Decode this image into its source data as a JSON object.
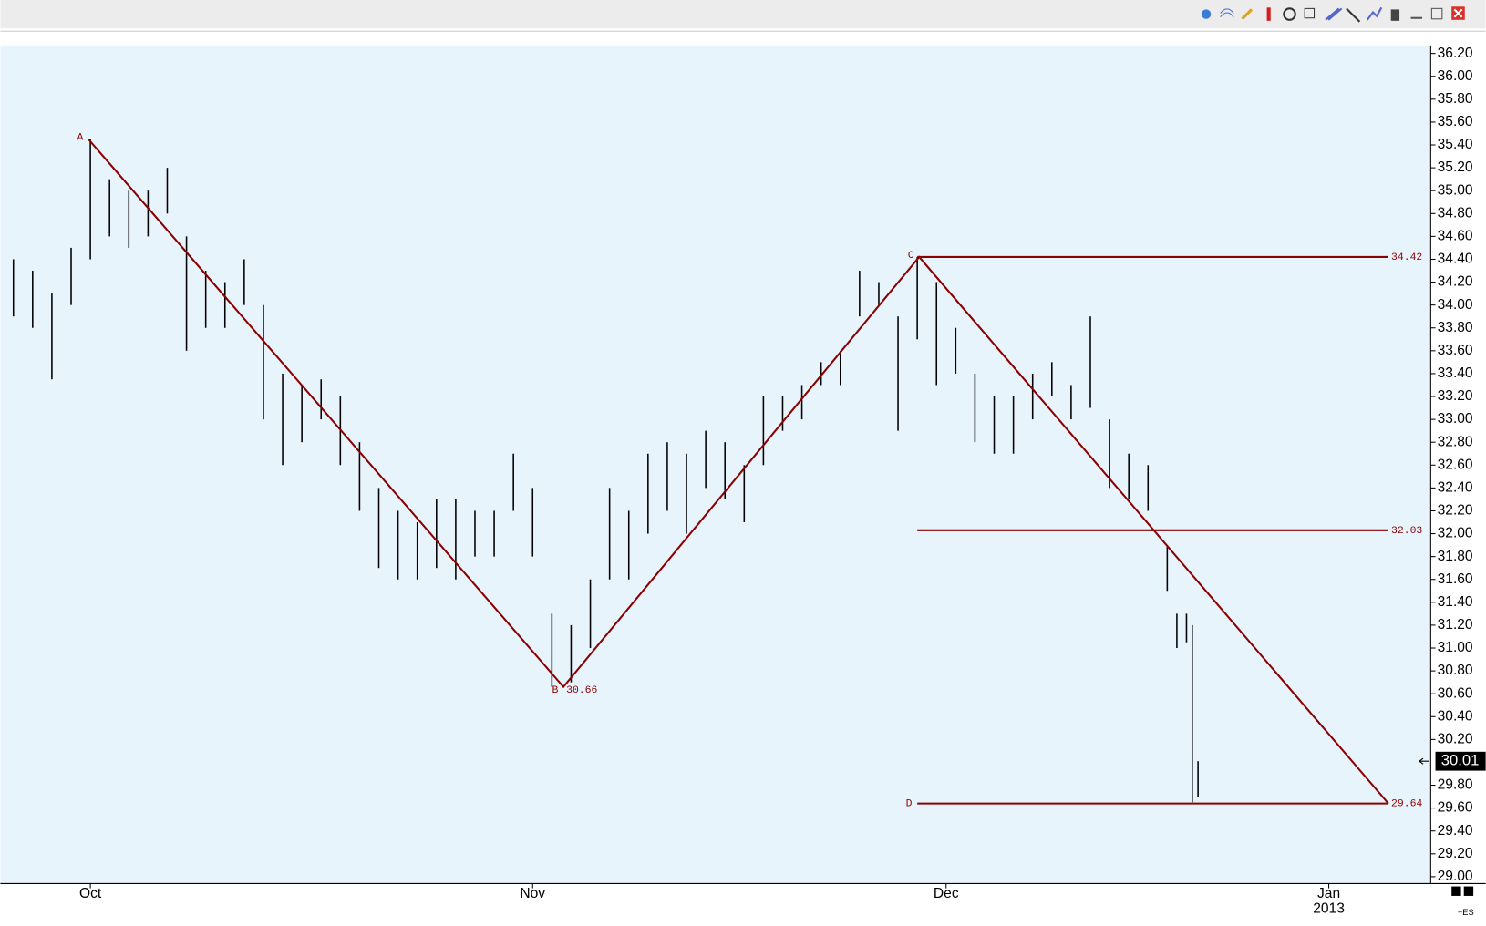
{
  "chart_data": {
    "type": "hl",
    "symbol": "+ES",
    "color": "#000000",
    "pattern_color": "#8b0000",
    "xlim": [
      -4.68,
      69.7
    ],
    "ylim": [
      28.94,
      36.27
    ],
    "xticks": [
      {
        "value": 0,
        "label": "Oct"
      },
      {
        "value": 23,
        "label": "Nov"
      },
      {
        "value": 44.5,
        "label": "Dec"
      },
      {
        "value": 64.4,
        "label": "Jan",
        "sublabel": "2013"
      }
    ],
    "yticks": [
      {
        "value": 29.0,
        "label": "29.00"
      },
      {
        "value": 29.2,
        "label": "29.20"
      },
      {
        "value": 29.4,
        "label": "29.40"
      },
      {
        "value": 29.6,
        "label": "29.60"
      },
      {
        "value": 29.8,
        "label": "29.80"
      },
      {
        "value": 30.2,
        "label": "30.20"
      },
      {
        "value": 30.4,
        "label": "30.40"
      },
      {
        "value": 30.6,
        "label": "30.60"
      },
      {
        "value": 30.8,
        "label": "30.80"
      },
      {
        "value": 31.0,
        "label": "31.00"
      },
      {
        "value": 31.2,
        "label": "31.20"
      },
      {
        "value": 31.4,
        "label": "31.40"
      },
      {
        "value": 31.6,
        "label": "31.60"
      },
      {
        "value": 31.8,
        "label": "31.80"
      },
      {
        "value": 32.0,
        "label": "32.00"
      },
      {
        "value": 32.2,
        "label": "32.20"
      },
      {
        "value": 32.4,
        "label": "32.40"
      },
      {
        "value": 32.6,
        "label": "32.60"
      },
      {
        "value": 32.8,
        "label": "32.80"
      },
      {
        "value": 33.0,
        "label": "33.00"
      },
      {
        "value": 33.2,
        "label": "33.20"
      },
      {
        "value": 33.4,
        "label": "33.40"
      },
      {
        "value": 33.6,
        "label": "33.60"
      },
      {
        "value": 33.8,
        "label": "33.80"
      },
      {
        "value": 34.0,
        "label": "34.00"
      },
      {
        "value": 34.2,
        "label": "34.20"
      },
      {
        "value": 34.4,
        "label": "34.40"
      },
      {
        "value": 34.6,
        "label": "34.60"
      },
      {
        "value": 34.8,
        "label": "34.80"
      },
      {
        "value": 35.0,
        "label": "35.00"
      },
      {
        "value": 35.2,
        "label": "35.20"
      },
      {
        "value": 35.4,
        "label": "35.40"
      },
      {
        "value": 35.6,
        "label": "35.60"
      },
      {
        "value": 35.8,
        "label": "35.80"
      },
      {
        "value": 36.0,
        "label": "36.00"
      },
      {
        "value": 36.2,
        "label": "36.20"
      }
    ],
    "x": [
      -4,
      -3,
      -2,
      -1,
      0,
      1,
      2,
      3,
      4,
      5,
      6,
      7,
      8,
      9,
      10,
      11,
      12,
      13,
      14,
      15,
      16,
      17,
      18,
      19,
      20,
      21,
      22,
      23,
      24,
      25,
      26,
      27,
      28,
      29,
      30,
      31,
      32,
      33,
      34,
      35,
      36,
      37,
      38,
      39,
      40,
      41,
      42,
      43,
      44,
      45,
      46,
      47,
      48,
      49,
      50,
      51,
      52,
      53,
      54,
      55,
      56,
      56.5,
      57,
      57.3,
      57.6
    ],
    "high": [
      34.4,
      34.3,
      34.1,
      34.5,
      35.45,
      35.1,
      35.0,
      35.0,
      35.2,
      34.6,
      34.3,
      34.2,
      34.4,
      34.0,
      33.4,
      33.3,
      33.35,
      33.2,
      32.8,
      32.4,
      32.2,
      32.1,
      32.3,
      32.3,
      32.2,
      32.2,
      32.7,
      32.4,
      31.3,
      31.2,
      31.6,
      32.4,
      32.2,
      32.7,
      32.8,
      32.7,
      32.9,
      32.8,
      32.6,
      33.2,
      33.2,
      33.3,
      33.5,
      33.6,
      34.3,
      34.2,
      33.9,
      34.42,
      34.2,
      33.8,
      33.4,
      33.2,
      33.2,
      33.4,
      33.5,
      33.3,
      33.9,
      33.0,
      32.7,
      32.6,
      31.9,
      31.3,
      31.3,
      31.2,
      30.01
    ],
    "low": [
      33.9,
      33.8,
      33.35,
      34.0,
      34.4,
      34.6,
      34.5,
      34.6,
      34.8,
      33.6,
      33.8,
      33.8,
      34.0,
      33.0,
      32.6,
      32.8,
      33.0,
      32.6,
      32.2,
      31.7,
      31.6,
      31.6,
      31.7,
      31.6,
      31.8,
      31.8,
      32.2,
      31.8,
      30.66,
      30.7,
      31.0,
      31.6,
      31.6,
      32.0,
      32.2,
      32.0,
      32.4,
      32.3,
      32.1,
      32.6,
      32.9,
      33.0,
      33.3,
      33.3,
      33.9,
      34.0,
      32.9,
      33.7,
      33.3,
      33.4,
      32.8,
      32.7,
      32.7,
      33.0,
      33.2,
      33.0,
      33.1,
      32.4,
      32.3,
      32.2,
      31.5,
      31.0,
      31.05,
      29.65,
      29.7
    ],
    "points": [
      {
        "label": "A",
        "x": -0.1,
        "value": 35.45
      },
      {
        "label": "B",
        "x": 24.6,
        "value": 30.66
      },
      {
        "label": "C",
        "x": 43.1,
        "value": 34.42
      },
      {
        "label": "D",
        "x": 67.5,
        "value": 29.64
      }
    ],
    "levels": [
      34.42,
      32.03,
      29.64
    ],
    "level_x": [
      43.0,
      67.5
    ],
    "last": 30.01
  }
}
